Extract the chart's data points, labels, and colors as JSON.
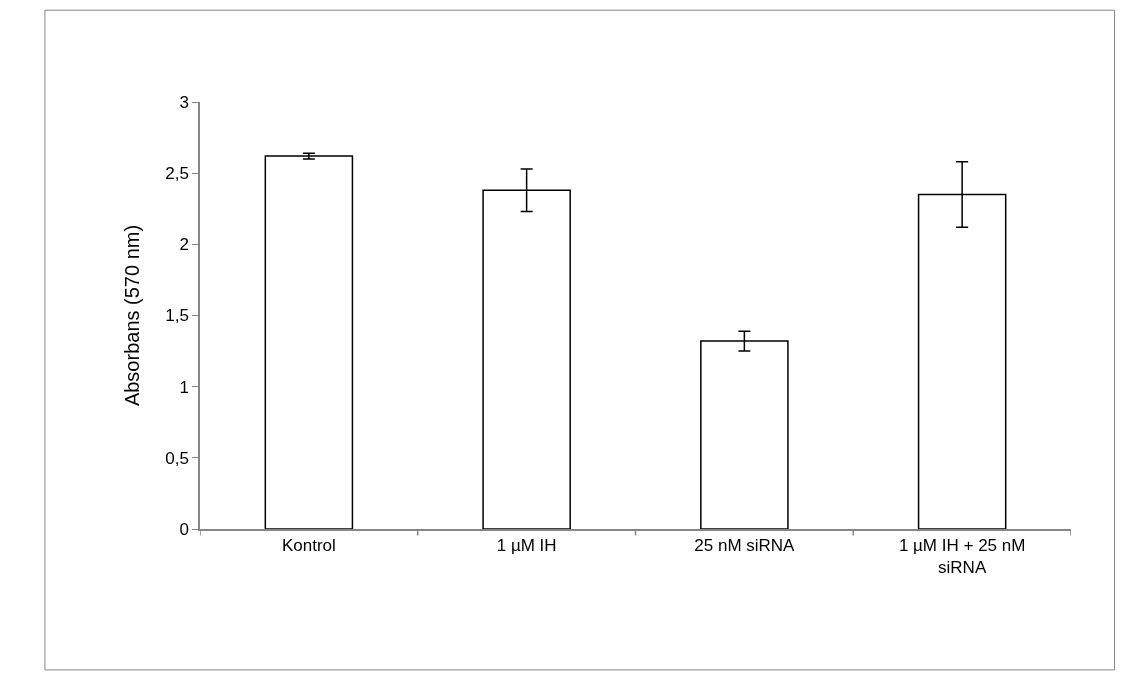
{
  "chart_data": {
    "type": "bar",
    "ylabel": "Absorbans (570 nm)",
    "categories": [
      "Kontrol",
      "1 µM IH",
      "25 nM siRNA",
      "1 µM IH + 25 nM siRNA"
    ],
    "values": [
      2.62,
      2.38,
      1.32,
      2.35
    ],
    "errors": [
      0.02,
      0.15,
      0.07,
      0.23
    ],
    "color": "#ffffff",
    "ylim": [
      0,
      3
    ],
    "yticks": [
      0,
      {
        "value": 0.5,
        "label": "0,5"
      },
      1,
      {
        "value": 1.5,
        "label": "1,5"
      },
      2,
      {
        "value": 2.5,
        "label": "2,5"
      },
      3
    ],
    "grid": false
  }
}
